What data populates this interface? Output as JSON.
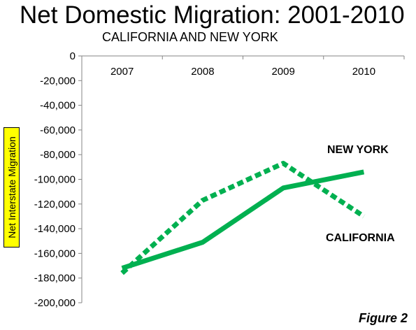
{
  "header": {
    "title": "Net Domestic Migration: 2001-2010",
    "subtitle": "CALIFORNIA AND NEW YORK"
  },
  "footer": {
    "figure_label": "Figure 2"
  },
  "colors": {
    "series": "#00b050",
    "ylabel_bg": "#ffff00"
  },
  "chart_data": {
    "type": "line",
    "title": "Net Domestic Migration: 2001-2010",
    "subtitle": "CALIFORNIA AND NEW YORK",
    "ylabel": "Net Interstate Migration",
    "xlabel": "",
    "categories": [
      "2007",
      "2008",
      "2009",
      "2010"
    ],
    "x_axis_position": "top",
    "ylim": [
      -200000,
      0
    ],
    "y_ticks": [
      0,
      -20000,
      -40000,
      -60000,
      -80000,
      -100000,
      -120000,
      -140000,
      -160000,
      -180000,
      -200000
    ],
    "y_tick_labels": [
      "0",
      "-20,000",
      "-40,000",
      "-60,000",
      "-80,000",
      "-100,000",
      "-120,000",
      "-140,000",
      "-160,000",
      "-180,000",
      "-200,000"
    ],
    "grid": false,
    "series": [
      {
        "name": "NEW YORK",
        "values": [
          -172000,
          -151000,
          -107000,
          -94000
        ],
        "style": "solid",
        "color": "#00b050"
      },
      {
        "name": "CALIFORNIA",
        "values": [
          -176000,
          -117000,
          -87000,
          -130000
        ],
        "style": "dotted",
        "color": "#00b050"
      }
    ]
  }
}
